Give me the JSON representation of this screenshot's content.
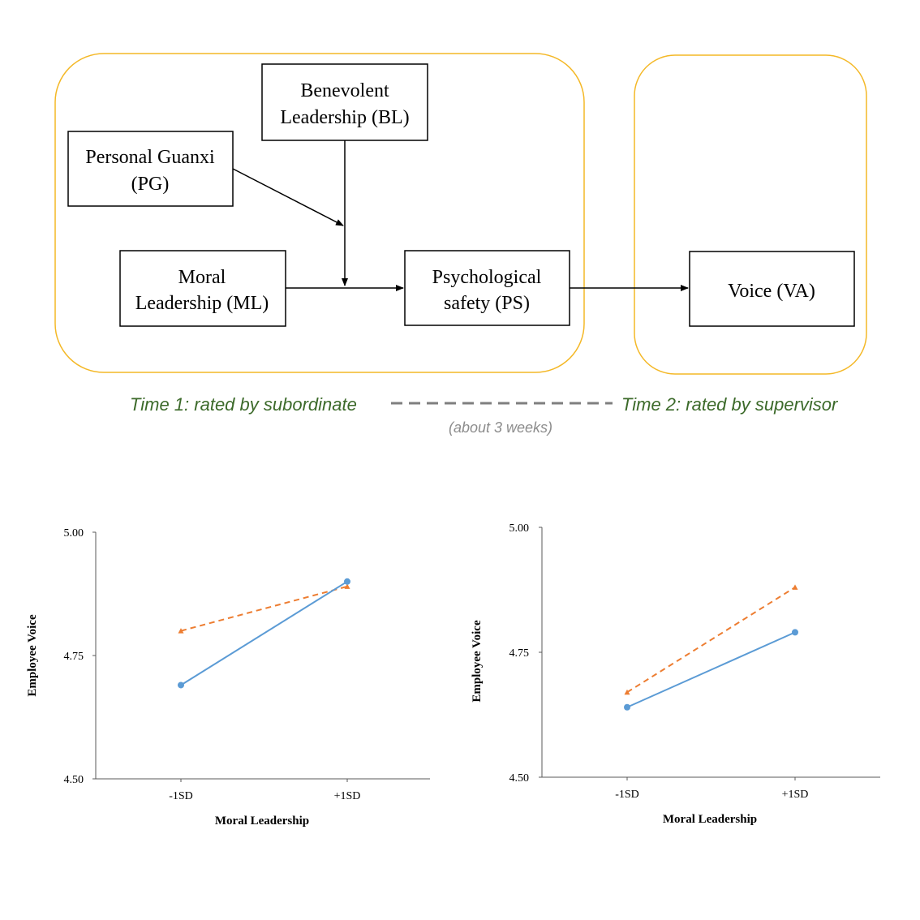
{
  "diagram": {
    "boxes": {
      "pg": {
        "line1": "Personal Guanxi",
        "line2": "(PG)"
      },
      "bl": {
        "line1": "Benevolent",
        "line2": "Leadership (BL)"
      },
      "ml": {
        "line1": "Moral",
        "line2": "Leadership (ML)"
      },
      "ps": {
        "line1": "Psychological",
        "line2": "safety (PS)"
      },
      "va": {
        "line1": "Voice (VA)"
      }
    },
    "timeline": {
      "time1": "Time 1: rated by subordinate",
      "time2": "Time 2: rated by supervisor",
      "gap": "(about 3 weeks)"
    },
    "colors": {
      "frame": "#F4B827",
      "timeline_text": "#3C6A2A",
      "gap_text": "#8C8C8C",
      "dash": "#7F7F7F"
    }
  },
  "chart_data": [
    {
      "type": "line",
      "xlabel": "Moral Leadership",
      "ylabel": "Employee Voice",
      "categories": [
        "-1SD",
        "+1SD"
      ],
      "ylim": [
        4.5,
        5.0
      ],
      "yticks": [
        "4.50",
        "4.75",
        "5.00"
      ],
      "series": [
        {
          "style": "solid",
          "color": "#5B9BD5",
          "marker": "circle",
          "values": [
            4.69,
            4.9
          ]
        },
        {
          "style": "dashed",
          "color": "#ED7D31",
          "marker": "triangle",
          "values": [
            4.8,
            4.89
          ]
        }
      ]
    },
    {
      "type": "line",
      "xlabel": "Moral Leadership",
      "ylabel": "Employee Voice",
      "categories": [
        "-1SD",
        "+1SD"
      ],
      "ylim": [
        4.5,
        5.0
      ],
      "yticks": [
        "4.50",
        "4.75",
        "5.00"
      ],
      "series": [
        {
          "style": "solid",
          "color": "#5B9BD5",
          "marker": "circle",
          "values": [
            4.64,
            4.79
          ]
        },
        {
          "style": "dashed",
          "color": "#ED7D31",
          "marker": "triangle",
          "values": [
            4.67,
            4.88
          ]
        }
      ]
    }
  ]
}
